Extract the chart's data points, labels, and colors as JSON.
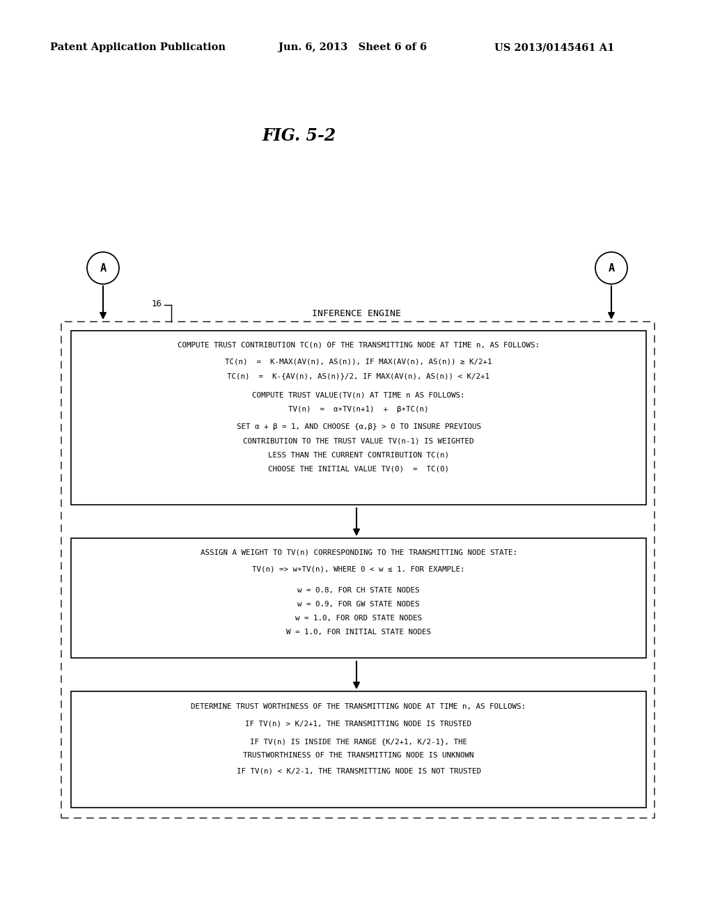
{
  "header_left": "Patent Application Publication",
  "header_mid": "Jun. 6, 2013   Sheet 6 of 6",
  "header_right": "US 2013/0145461 A1",
  "fig_title": "FIG. 5-2",
  "label_16": "16",
  "label_inference": "INFERENCE ENGINE",
  "box1_lines": [
    "COMPUTE TRUST CONTRIBUTION TC(n) OF THE TRANSMITTING NODE AT TIME n, AS FOLLOWS:",
    "TC(n)  =  K-MAX(AV(n), AS(n)), IF MAX(AV(n), AS(n)) ≥ K/2+1",
    "TC(n)  =  K-{AV(n), AS(n)}/2, IF MAX(AV(n), AS(n)) < K/2+1",
    "COMPUTE TRUST VALUE(TV(n) AT TIME n AS FOLLOWS:",
    "TV(n)  =  α∗TV(n+1)  +  β∗TC(n)",
    "SET α + β = 1, AND CHOOSE {α,β} > 0 TO INSURE PREVIOUS",
    "CONTRIBUTION TO THE TRUST VALUE TV(n-1) IS WEIGHTED",
    "LESS THAN THE CURRENT CONTRIBUTION TC(n)",
    "CHOOSE THE INITIAL VALUE TV(0)  =  TC(0)"
  ],
  "box2_lines": [
    "ASSIGN A WEIGHT TO TV(n) CORRESPONDING TO THE TRANSMITTING NODE STATE:",
    "TV(n) => w∗TV(n), WHERE 0 < w ≤ 1. FOR EXAMPLE:",
    "w = 0.8, FOR CH STATE NODES",
    "w = 0.9, FOR GW STATE NODES",
    "w = 1.0, FOR ORD STATE NODES",
    "W = 1.0, FOR INITIAL STATE NODES"
  ],
  "box3_lines": [
    "DETERMINE TRUST WORTHINESS OF THE TRANSMITTING NODE AT TIME n, AS FOLLOWS:",
    "IF TV(n) > K/2+1, THE TRANSMITTING NODE IS TRUSTED",
    "IF TV(n) IS INSIDE THE RANGE {K/2+1, K/2-1}, THE",
    "TRUSTWORTHINESS OF THE TRANSMITTING NODE IS UNKNOWN",
    "IF TV(n) < K/2-1, THE TRANSMITTING NODE IS NOT TRUSTED"
  ],
  "bg_color": "#ffffff",
  "text_color": "#000000",
  "header_font": "DejaVu Serif",
  "mono_font": "DejaVu Sans Mono",
  "fig_font": "DejaVu Serif"
}
